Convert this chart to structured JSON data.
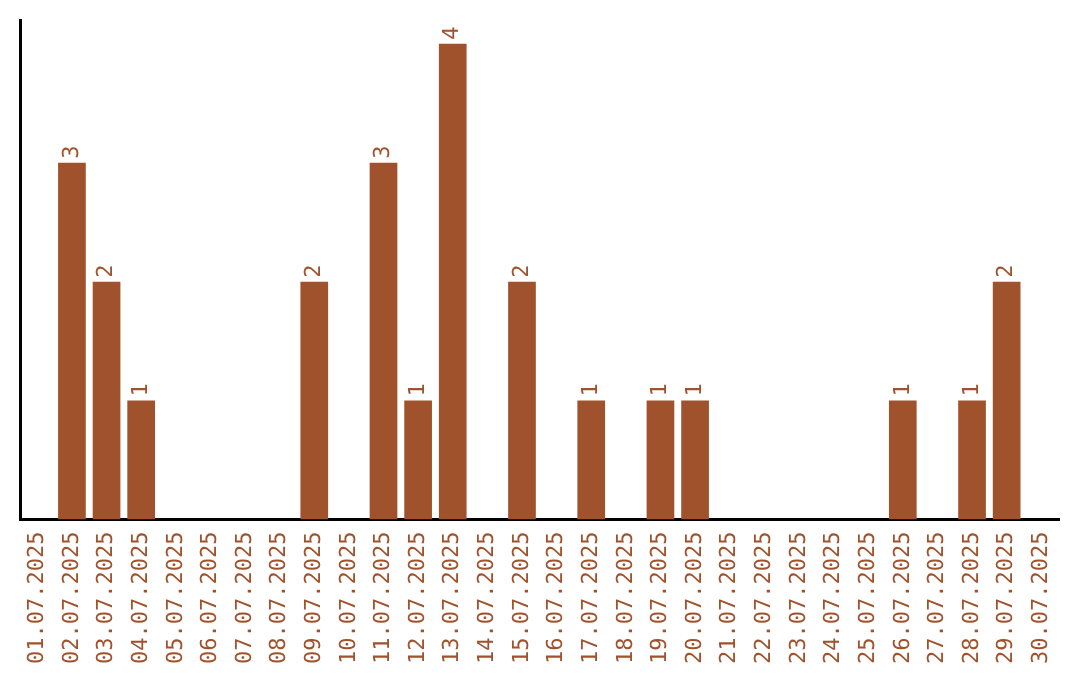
{
  "chart_data": {
    "type": "bar",
    "categories": [
      "01.07.2025",
      "02.07.2025",
      "03.07.2025",
      "04.07.2025",
      "05.07.2025",
      "06.07.2025",
      "07.07.2025",
      "08.07.2025",
      "09.07.2025",
      "10.07.2025",
      "11.07.2025",
      "12.07.2025",
      "13.07.2025",
      "14.07.2025",
      "15.07.2025",
      "16.07.2025",
      "17.07.2025",
      "18.07.2025",
      "19.07.2025",
      "20.07.2025",
      "21.07.2025",
      "22.07.2025",
      "23.07.2025",
      "24.07.2025",
      "25.07.2025",
      "26.07.2025",
      "27.07.2025",
      "28.07.2025",
      "29.07.2025",
      "30.07.2025"
    ],
    "values": [
      0,
      3,
      2,
      1,
      0,
      0,
      0,
      0,
      2,
      0,
      3,
      1,
      4,
      0,
      2,
      0,
      1,
      0,
      1,
      1,
      0,
      0,
      0,
      0,
      0,
      1,
      0,
      1,
      2,
      0
    ],
    "value_labels": [
      null,
      "3",
      "2",
      "1",
      null,
      null,
      null,
      null,
      "2",
      null,
      "3",
      "1",
      "4",
      null,
      "2",
      null,
      "1",
      null,
      "1",
      "1",
      null,
      null,
      null,
      null,
      null,
      "1",
      null,
      "1",
      "2",
      null
    ],
    "color": "#a0522d",
    "ylim": [
      0,
      4.2
    ],
    "tick_labels": "x",
    "grid": false,
    "legend": false
  }
}
